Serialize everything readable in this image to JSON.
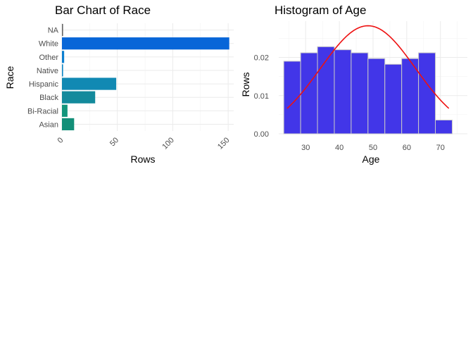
{
  "chart_data": [
    {
      "type": "bar",
      "orientation": "horizontal",
      "title": "Bar Chart of Race",
      "xlabel": "Rows",
      "ylabel": "Race",
      "categories": [
        "Asian",
        "Bi-Racial",
        "Black",
        "Hispanic",
        "Native",
        "Other",
        "White",
        "NA"
      ],
      "values": [
        11,
        5,
        30,
        49,
        1,
        2,
        151,
        1
      ],
      "colors": [
        "#138f78",
        "#13957c",
        "#138a9c",
        "#1189b3",
        "#0e86c4",
        "#0b7fd0",
        "#0866d8",
        "#666666"
      ],
      "xlim": [
        0,
        155
      ],
      "xticks": [
        0,
        50,
        100,
        150
      ],
      "grid": true,
      "legend": "none"
    },
    {
      "type": "histogram",
      "title": "Histogram of Age",
      "xlabel": "Age",
      "ylabel": "Rows",
      "bins": [
        {
          "start": 23.5,
          "end": 28.5,
          "density": 0.019
        },
        {
          "start": 28.5,
          "end": 33.5,
          "density": 0.0212
        },
        {
          "start": 33.5,
          "end": 38.5,
          "density": 0.0228
        },
        {
          "start": 38.5,
          "end": 43.5,
          "density": 0.022
        },
        {
          "start": 43.5,
          "end": 48.5,
          "density": 0.0212
        },
        {
          "start": 48.5,
          "end": 53.5,
          "density": 0.0197
        },
        {
          "start": 53.5,
          "end": 58.5,
          "density": 0.0182
        },
        {
          "start": 58.5,
          "end": 63.5,
          "density": 0.0197
        },
        {
          "start": 63.5,
          "end": 68.5,
          "density": 0.0212
        },
        {
          "start": 68.5,
          "end": 73.5,
          "density": 0.0036
        }
      ],
      "bar_color": "#4236e8",
      "bar_border": "#c8c8c8",
      "normal_curve": {
        "mean": 48.5,
        "sd": 14.1,
        "x_range": [
          24.5,
          72.5
        ],
        "color": "#ee1111"
      },
      "xlim": [
        22,
        78
      ],
      "ylim": [
        0,
        0.0295
      ],
      "xticks": [
        30,
        40,
        50,
        60,
        70
      ],
      "yticks": [
        0.0,
        0.01,
        0.02
      ],
      "ytick_labels": [
        "0.00",
        "0.01",
        "0.02"
      ],
      "grid": true,
      "legend": "none"
    }
  ]
}
